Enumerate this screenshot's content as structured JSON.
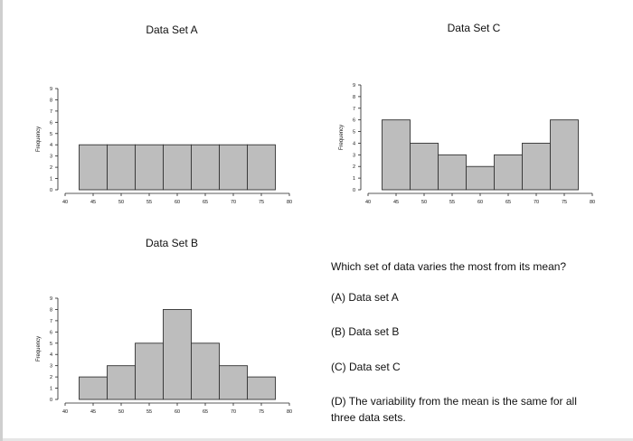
{
  "y_axis_label": "Frequency",
  "question": {
    "prompt": "Which set of data varies the most from its mean?",
    "options": [
      "(A) Data set A",
      "(B) Data set B",
      "(C) Data set C",
      "(D) The variability from the mean is the same for all three data sets."
    ]
  },
  "chart_data": [
    {
      "type": "bar",
      "title": "Data Set A",
      "ylabel": "Frequency",
      "bin_edges": [
        42.5,
        47.5,
        52.5,
        57.5,
        62.5,
        67.5,
        72.5,
        77.5
      ],
      "values": [
        4,
        4,
        4,
        4,
        4,
        4,
        4
      ],
      "xticks": [
        40,
        45,
        50,
        55,
        60,
        65,
        70,
        75,
        80
      ],
      "xlim": [
        40,
        80
      ],
      "ylim": [
        0,
        9
      ],
      "yticks": [
        0,
        1,
        2,
        3,
        4,
        5,
        6,
        7,
        8,
        9
      ],
      "bar_color": "#bdbdbd",
      "grid": false
    },
    {
      "type": "bar",
      "title": "Data Set C",
      "ylabel": "Frequency",
      "bin_edges": [
        42.5,
        47.5,
        52.5,
        57.5,
        62.5,
        67.5,
        72.5,
        77.5
      ],
      "values": [
        6,
        4,
        3,
        2,
        3,
        4,
        6
      ],
      "xticks": [
        40,
        45,
        50,
        55,
        60,
        65,
        70,
        75,
        80
      ],
      "xlim": [
        40,
        80
      ],
      "ylim": [
        0,
        9
      ],
      "yticks": [
        0,
        1,
        2,
        3,
        4,
        5,
        6,
        7,
        8,
        9
      ],
      "bar_color": "#bdbdbd",
      "grid": false
    },
    {
      "type": "bar",
      "title": "Data Set B",
      "ylabel": "Frequency",
      "bin_edges": [
        42.5,
        47.5,
        52.5,
        57.5,
        62.5,
        67.5,
        72.5,
        77.5
      ],
      "values": [
        2,
        3,
        5,
        8,
        5,
        3,
        2
      ],
      "xticks": [
        40,
        45,
        50,
        55,
        60,
        65,
        70,
        75,
        80
      ],
      "xlim": [
        40,
        80
      ],
      "ylim": [
        0,
        9
      ],
      "yticks": [
        0,
        1,
        2,
        3,
        4,
        5,
        6,
        7,
        8,
        9
      ],
      "bar_color": "#bdbdbd",
      "grid": false
    }
  ]
}
